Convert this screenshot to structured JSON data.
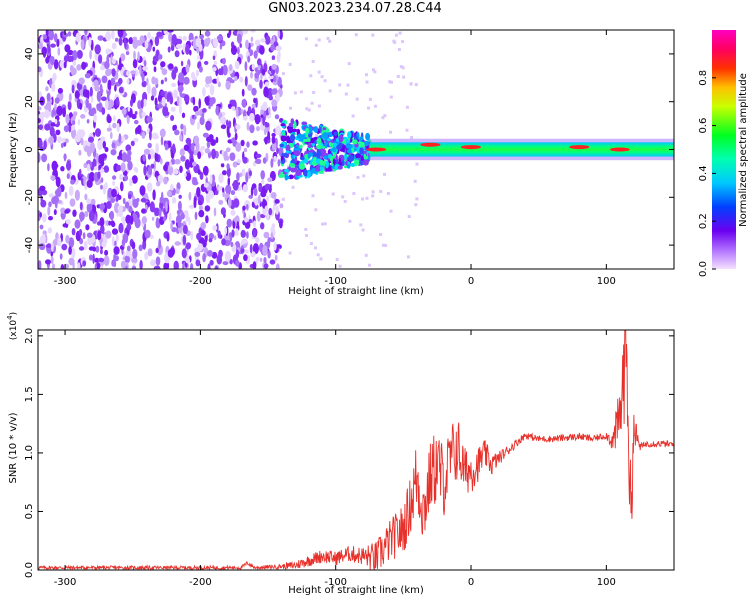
{
  "title": "GN03.2023.234.07.28.C44",
  "colors": {
    "snr_line": "#e8302a",
    "axis": "#000000",
    "ridge_edge": "#00c8ff",
    "ridge_mid": "#00ff60",
    "ridge_core": "#ff2020"
  },
  "chart_data": [
    {
      "type": "heatmap",
      "xlabel": "Height of straight line (km)",
      "ylabel": "Frequency (Hz)",
      "xlim": [
        -320,
        150
      ],
      "ylim": [
        -50,
        50
      ],
      "x_ticks": [
        -300,
        -200,
        -100,
        0,
        100
      ],
      "y_ticks": [
        -40,
        -20,
        0,
        20,
        40
      ],
      "colorbar": {
        "label": "Normalized spectral amplitude",
        "range": [
          0.0,
          1.0
        ],
        "ticks": [
          "0.0",
          "0.2",
          "0.4",
          "0.6",
          "0.8"
        ],
        "colormap": "rainbow (magenta-blue-cyan-green-yellow-red-magenta)"
      },
      "regions": [
        {
          "x": [
            -320,
            -140
          ],
          "y": [
            -50,
            50
          ],
          "amplitude": 0.15,
          "description": "broadband noise"
        },
        {
          "x": [
            -140,
            -75
          ],
          "y": [
            -12,
            14
          ],
          "amplitude": 0.3,
          "description": "scattered energy"
        },
        {
          "x": [
            -75,
            150
          ],
          "y": [
            -3,
            3
          ],
          "amplitude": 0.6,
          "description": "narrow ridge near 0 Hz"
        }
      ],
      "ridge_peaks": [
        {
          "x": -70,
          "y": 0,
          "amplitude": 0.85
        },
        {
          "x": -30,
          "y": 2,
          "amplitude": 0.85
        },
        {
          "x": 0,
          "y": 1,
          "amplitude": 0.9
        },
        {
          "x": 80,
          "y": 1,
          "amplitude": 0.95
        },
        {
          "x": 110,
          "y": 0,
          "amplitude": 0.85
        }
      ]
    },
    {
      "type": "line",
      "xlabel": "Height of straight line (km)",
      "ylabel": "SNR (10 * v/v)",
      "y_multiplier": "(x10",
      "y_multiplier_exp": "4",
      "y_multiplier_close": ")",
      "xlim": [
        -320,
        150
      ],
      "ylim": [
        0,
        2.05
      ],
      "x_ticks": [
        -300,
        -200,
        -100,
        0,
        100
      ],
      "y_ticks": [
        "0.0",
        "0.5",
        "1.0",
        "1.5",
        "2.0"
      ],
      "series": [
        {
          "x": [
            -320,
            -250,
            -200,
            -170,
            -165,
            -160,
            -140,
            -130,
            -120,
            -110,
            -100,
            -90,
            -80,
            -70,
            -60,
            -50,
            -45,
            -40,
            -35,
            -30,
            -25,
            -20,
            -15,
            -10,
            -5,
            0,
            5,
            10,
            15,
            20,
            30,
            40,
            50,
            60,
            70,
            80,
            90,
            100,
            105,
            110,
            112,
            115,
            118,
            120,
            125,
            130,
            140,
            150
          ],
          "values": [
            0.02,
            0.02,
            0.02,
            0.02,
            0.06,
            0.02,
            0.03,
            0.04,
            0.08,
            0.12,
            0.1,
            0.14,
            0.12,
            0.1,
            0.25,
            0.35,
            0.55,
            0.8,
            0.5,
            0.8,
            0.9,
            0.75,
            0.95,
            1.05,
            0.85,
            0.85,
            0.9,
            1.0,
            0.9,
            0.95,
            1.05,
            1.15,
            1.12,
            1.12,
            1.13,
            1.14,
            1.12,
            1.15,
            1.1,
            1.3,
            1.55,
            2.05,
            0.35,
            1.2,
            1.05,
            1.08,
            1.08,
            1.07
          ],
          "noise": [
            0.015,
            0.015,
            0.015,
            0.015,
            0.02,
            0.015,
            0.02,
            0.04,
            0.05,
            0.06,
            0.06,
            0.07,
            0.08,
            0.15,
            0.18,
            0.22,
            0.25,
            0.35,
            0.3,
            0.3,
            0.35,
            0.3,
            0.3,
            0.3,
            0.2,
            0.2,
            0.15,
            0.12,
            0.1,
            0.06,
            0.04,
            0.03,
            0.03,
            0.03,
            0.03,
            0.03,
            0.03,
            0.03,
            0.1,
            0.3,
            0.45,
            0.6,
            0.5,
            0.2,
            0.03,
            0.03,
            0.03,
            0.03
          ]
        }
      ]
    }
  ]
}
